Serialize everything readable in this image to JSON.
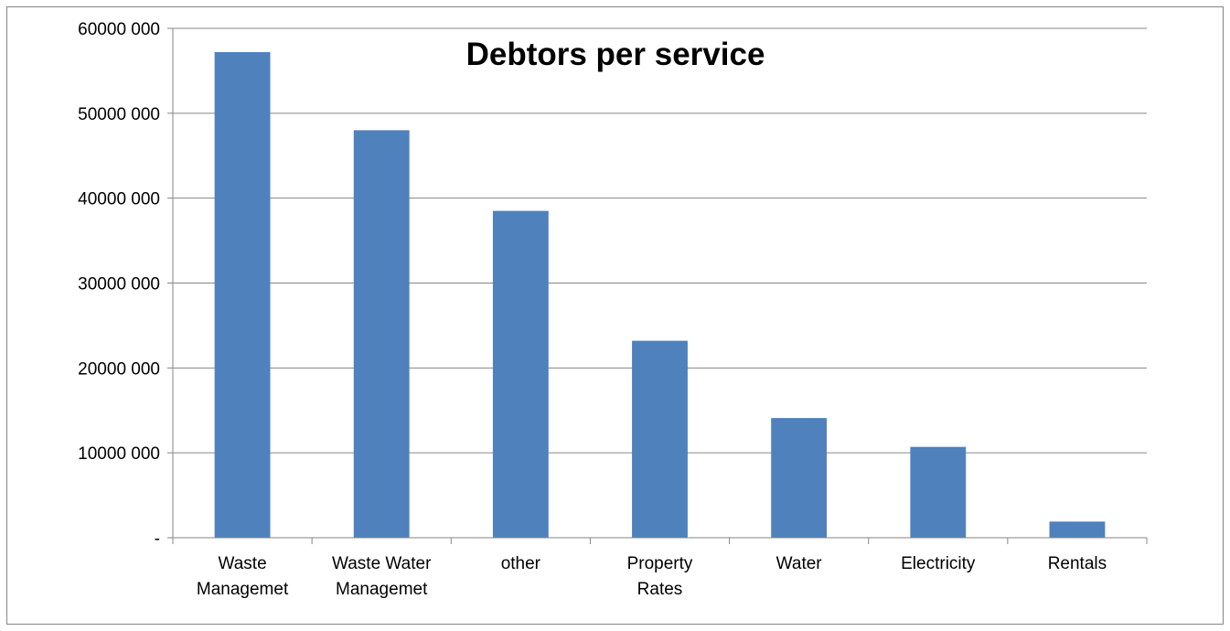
{
  "chart_data": {
    "type": "bar",
    "title": "Debtors per service",
    "xlabel": "",
    "ylabel": "",
    "categories": [
      [
        "Waste",
        "Managemet"
      ],
      [
        "Waste Water",
        "Managemet"
      ],
      [
        "other"
      ],
      [
        "Property",
        "Rates"
      ],
      [
        "Water"
      ],
      [
        "Electricity"
      ],
      [
        "Rentals"
      ]
    ],
    "values": [
      57200000,
      48000000,
      38500000,
      23200000,
      14100000,
      10700000,
      1900000
    ],
    "ylim": [
      0,
      60000000
    ],
    "yticks": [
      0,
      10000000,
      20000000,
      30000000,
      40000000,
      50000000,
      60000000
    ],
    "ytick_labels": [
      "-",
      "10000 000",
      "20000 000",
      "30000 000",
      "40000 000",
      "50000 000",
      "60000 000"
    ],
    "grid": true,
    "legend": "none",
    "colors": {
      "bar": "#4F81BD",
      "grid": "#868686",
      "axis": "#868686"
    }
  }
}
